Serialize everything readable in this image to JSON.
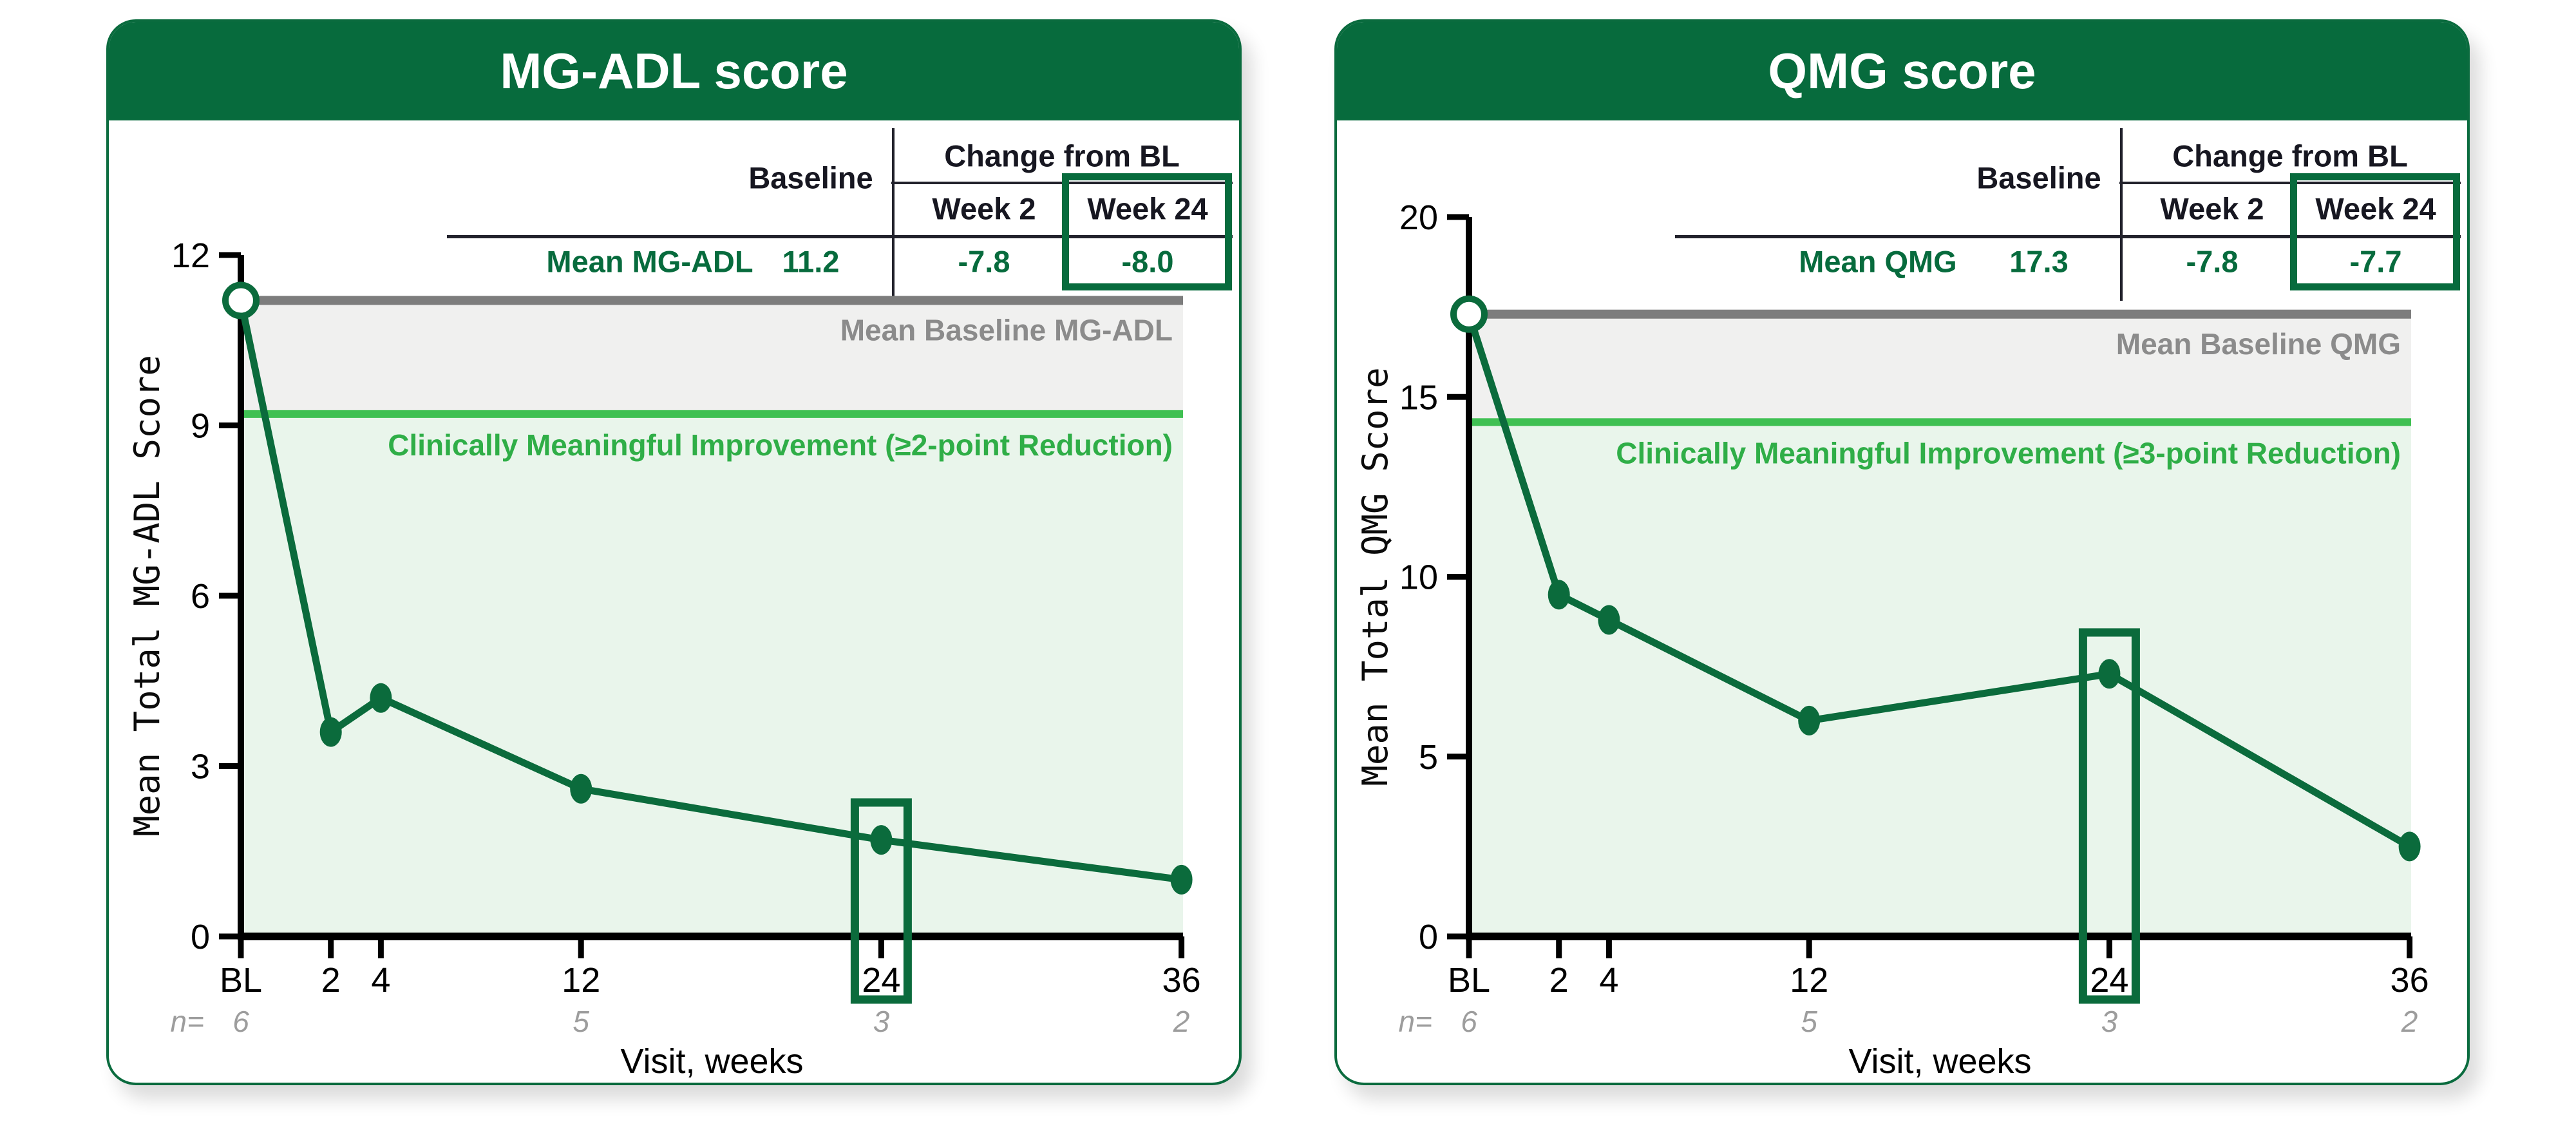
{
  "colors": {
    "brand_green": "#076b3d",
    "series_green": "#0b6b3c",
    "bright_green": "#3fc052",
    "green_text": "#2fae47",
    "light_green_fill": "#e9f5eb",
    "gray_line": "#7d7d7d",
    "gray_fill": "#f0f0ef",
    "gray_text": "#8b8b8b",
    "n_gray": "#9d9d9d",
    "table_text": "#171721",
    "axis_black": "#000000"
  },
  "charts": [
    {
      "title": "MG-ADL score",
      "table": {
        "change_header": "Change from BL",
        "baseline_header": "Baseline",
        "week2_header": "Week 2",
        "week24_header": "Week 24",
        "row_label": "Mean MG-ADL",
        "baseline_value": "11.2",
        "week2_change": "-7.8",
        "week24_change": "-8.0"
      },
      "chart_data": {
        "type": "line",
        "x_categories": [
          "BL",
          "2",
          "4",
          "12",
          "24",
          "36"
        ],
        "x_weeks": [
          null,
          2,
          4,
          12,
          24,
          36
        ],
        "values": [
          11.2,
          3.6,
          4.2,
          2.6,
          1.7,
          1.0
        ],
        "ylim": [
          0,
          12
        ],
        "yticks": [
          0,
          3,
          6,
          9,
          12
        ],
        "ylabel": "Mean Total MG-ADL Score",
        "xlabel": "Visit, weeks",
        "baseline_line": {
          "value": 11.2,
          "label": "Mean Baseline MG-ADL"
        },
        "cmi_line": {
          "value": 9.2,
          "label": "Clinically Meaningful Improvement (≥2-point Reduction)"
        },
        "highlight_category": "24",
        "n_row": {
          "label": "n=",
          "entries": [
            {
              "x": "BL",
              "n": "6"
            },
            {
              "x": "12",
              "n": "5"
            },
            {
              "x": "24",
              "n": "3"
            },
            {
              "x": "36",
              "n": "2"
            }
          ]
        }
      }
    },
    {
      "title": "QMG score",
      "table": {
        "change_header": "Change from BL",
        "baseline_header": "Baseline",
        "week2_header": "Week 2",
        "week24_header": "Week 24",
        "row_label": "Mean QMG",
        "baseline_value": "17.3",
        "week2_change": "-7.8",
        "week24_change": "-7.7"
      },
      "chart_data": {
        "type": "line",
        "x_categories": [
          "BL",
          "2",
          "4",
          "12",
          "24",
          "36"
        ],
        "x_weeks": [
          null,
          2,
          4,
          12,
          24,
          36
        ],
        "values": [
          17.3,
          9.5,
          8.8,
          6.0,
          7.3,
          2.5
        ],
        "ylim": [
          0,
          20
        ],
        "yticks": [
          0,
          5,
          10,
          15,
          20
        ],
        "ylabel": "Mean Total QMG Score",
        "xlabel": "Visit, weeks",
        "baseline_line": {
          "value": 17.3,
          "label": "Mean Baseline QMG"
        },
        "cmi_line": {
          "value": 14.3,
          "label": "Clinically Meaningful Improvement (≥3-point Reduction)"
        },
        "highlight_category": "24",
        "n_row": {
          "label": "n=",
          "entries": [
            {
              "x": "BL",
              "n": "6"
            },
            {
              "x": "12",
              "n": "5"
            },
            {
              "x": "24",
              "n": "3"
            },
            {
              "x": "36",
              "n": "2"
            }
          ]
        }
      }
    }
  ]
}
